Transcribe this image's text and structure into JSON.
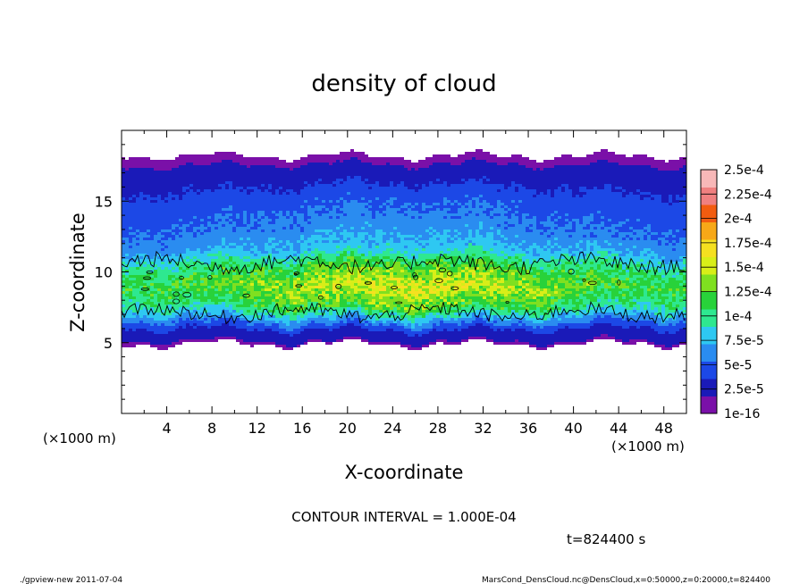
{
  "chart_data": {
    "type": "heatmap",
    "title": "density of cloud",
    "xlabel": "X-coordinate",
    "ylabel": "Z-coordinate",
    "x_unit_left": "(×1000 m)",
    "x_unit_right": "(×1000 m)",
    "xlim": [
      0,
      50
    ],
    "ylim": [
      0,
      20
    ],
    "x_ticks": [
      "4",
      "8",
      "12",
      "16",
      "20",
      "24",
      "28",
      "32",
      "36",
      "40",
      "44",
      "48"
    ],
    "x_tick_values": [
      4,
      8,
      12,
      16,
      20,
      24,
      28,
      32,
      36,
      40,
      44,
      48
    ],
    "y_ticks": [
      "5",
      "10",
      "15"
    ],
    "y_tick_values": [
      5,
      10,
      15
    ],
    "grid": false,
    "legend_position": "right",
    "colorbar": {
      "labels": [
        "1e-16",
        "2.5e-5",
        "5e-5",
        "7.5e-5",
        "1e-4",
        "1.25e-4",
        "1.5e-4",
        "1.75e-4",
        "2e-4",
        "2.25e-4",
        "2.5e-4"
      ],
      "colors": [
        "#7a10a8",
        "#1a1ab8",
        "#1c48e6",
        "#2a8cf0",
        "#2ec8f2",
        "#2ee890",
        "#28d23a",
        "#7fe020",
        "#d8ee18",
        "#f5e020",
        "#f7a818",
        "#f25c10",
        "#f08080",
        "#f8b8b8"
      ]
    },
    "z_profile": [
      {
        "z": 4.9,
        "value": 1e-16
      },
      {
        "z": 5.6,
        "value": 1.5e-05
      },
      {
        "z": 6.5,
        "value": 6e-05
      },
      {
        "z": 7.5,
        "value": 0.00012
      },
      {
        "z": 9.0,
        "value": 0.000155
      },
      {
        "z": 10.5,
        "value": 0.00012
      },
      {
        "z": 11.5,
        "value": 8e-05
      },
      {
        "z": 13.0,
        "value": 6e-05
      },
      {
        "z": 15.0,
        "value": 4.5e-05
      },
      {
        "z": 16.5,
        "value": 2.5e-05
      },
      {
        "z": 17.5,
        "value": 5e-06
      },
      {
        "z": 18.2,
        "value": 1e-16
      }
    ],
    "contour_interval_text": "CONTOUR INTERVAL = 1.000E-04",
    "time_text": "t=824400 s"
  },
  "footer": {
    "left": "./gpview-new   2011-07-04",
    "right": "MarsCond_DensCloud.nc@DensCloud,x=0:50000,z=0:20000,t=824400"
  }
}
